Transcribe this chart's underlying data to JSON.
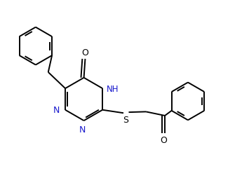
{
  "bg_color": "#ffffff",
  "line_color": "#000000",
  "label_color_N": "#1a1acd",
  "label_color_O": "#000000",
  "label_color_S": "#000000",
  "label_color_NH": "#1a1acd",
  "line_width": 1.4,
  "figsize": [
    3.55,
    2.55
  ],
  "dpi": 100,
  "xlim": [
    0,
    9.5
  ],
  "ylim": [
    0,
    6.8
  ]
}
